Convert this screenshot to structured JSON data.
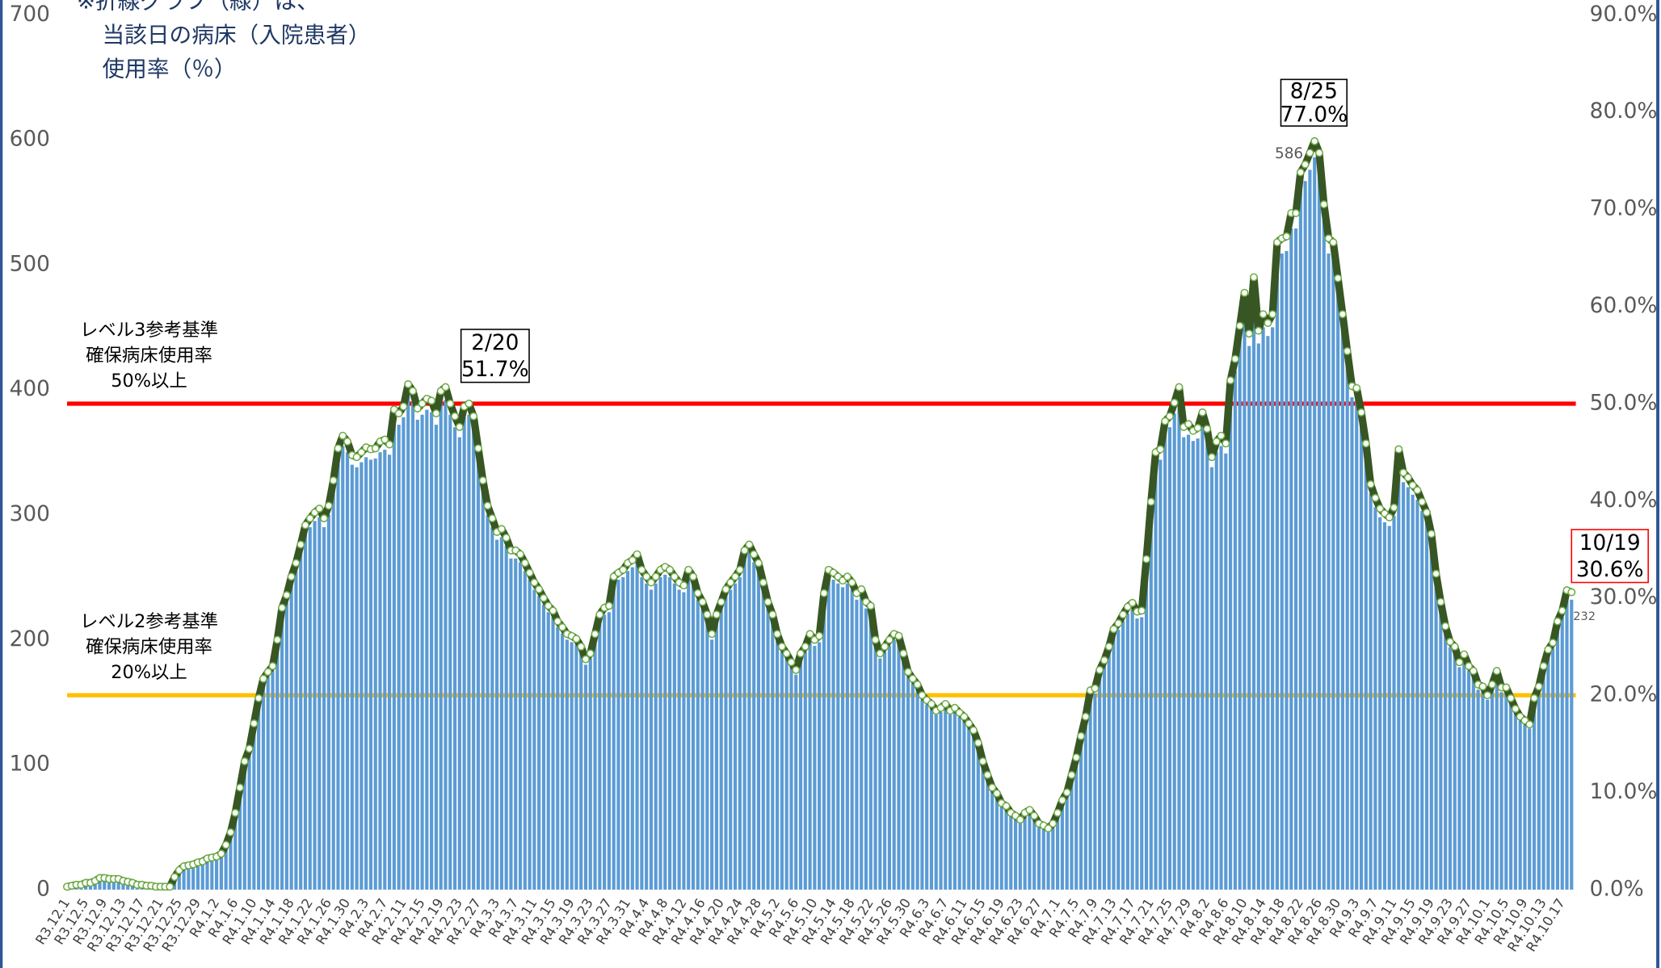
{
  "chart_data": {
    "type": "bar",
    "note": [
      "※折線グラフ（緑）は、",
      "当該日の病床（入院患者）",
      "使用率（％）"
    ],
    "categories": [
      "R3.12.1",
      null,
      null,
      null,
      "R3.12.5",
      null,
      null,
      null,
      "R3.12.9",
      null,
      null,
      null,
      "R3.12.13",
      null,
      null,
      null,
      "R3.12.17",
      null,
      null,
      null,
      "R3.12.21",
      null,
      null,
      null,
      "R3.12.25",
      null,
      null,
      null,
      "R3.12.29",
      null,
      null,
      null,
      "R4.1.2",
      null,
      null,
      null,
      "R4.1.6",
      null,
      null,
      null,
      "R4.1.10",
      null,
      null,
      null,
      "R4.1.14",
      null,
      null,
      null,
      "R4.1.18",
      null,
      null,
      null,
      "R4.1.22",
      null,
      null,
      null,
      "R4.1.26",
      null,
      null,
      null,
      "R4.1.30",
      null,
      null,
      null,
      "R4.2.3",
      null,
      null,
      null,
      "R4.2.7",
      null,
      null,
      null,
      "R4.2.11",
      null,
      null,
      null,
      "R4.2.15",
      null,
      null,
      null,
      "R4.2.19",
      null,
      null,
      null,
      "R4.2.23",
      null,
      null,
      null,
      "R4.2.27",
      null,
      null,
      null,
      "R4.3.3",
      null,
      null,
      null,
      "R4.3.7",
      null,
      null,
      null,
      "R4.3.11",
      null,
      null,
      null,
      "R4.3.15",
      null,
      null,
      null,
      "R4.3.19",
      null,
      null,
      null,
      "R4.3.23",
      null,
      null,
      null,
      "R4.3.27",
      null,
      null,
      null,
      "R4.3.31",
      null,
      null,
      null,
      "R4.4.4",
      null,
      null,
      null,
      "R4.4.8",
      null,
      null,
      null,
      "R4.4.12",
      null,
      null,
      null,
      "R4.4.16",
      null,
      null,
      null,
      "R4.4.20",
      null,
      null,
      null,
      "R4.4.24",
      null,
      null,
      null,
      "R4.4.28",
      null,
      null,
      null,
      "R4.5.2",
      null,
      null,
      null,
      "R4.5.6",
      null,
      null,
      null,
      "R4.5.10",
      null,
      null,
      null,
      "R4.5.14",
      null,
      null,
      null,
      "R4.5.18",
      null,
      null,
      null,
      "R4.5.22",
      null,
      null,
      null,
      "R4.5.26",
      null,
      null,
      null,
      "R4.5.30",
      null,
      null,
      null,
      "R4.6.3",
      null,
      null,
      null,
      "R4.6.7",
      null,
      null,
      null,
      "R4.6.11",
      null,
      null,
      null,
      "R4.6.15",
      null,
      null,
      null,
      "R4.6.19",
      null,
      null,
      null,
      "R4.6.23",
      null,
      null,
      null,
      "R4.6.27",
      null,
      null,
      null,
      "R4.7.1",
      null,
      null,
      null,
      "R4.7.5",
      null,
      null,
      null,
      "R4.7.9",
      null,
      null,
      null,
      "R4.7.13",
      null,
      null,
      null,
      "R4.7.17",
      null,
      null,
      null,
      "R4.7.21",
      null,
      null,
      null,
      "R4.7.25",
      null,
      null,
      null,
      "R4.7.29",
      null,
      null,
      null,
      "R4.8.2",
      null,
      null,
      null,
      "R4.8.6",
      null,
      null,
      null,
      "R4.8.10",
      null,
      null,
      null,
      "R4.8.14",
      null,
      null,
      null,
      "R4.8.18",
      null,
      null,
      null,
      "R4.8.22",
      null,
      null,
      null,
      "R4.8.26",
      null,
      null,
      null,
      "R4.8.30",
      null,
      null,
      null,
      "R4.9.3",
      null,
      null,
      null,
      "R4.9.7",
      null,
      null,
      null,
      "R4.9.11",
      null,
      null,
      null,
      "R4.9.15",
      null,
      null,
      null,
      "R4.9.19",
      null,
      null,
      null,
      "R4.9.23",
      null,
      null,
      null,
      "R4.9.27",
      null,
      null,
      null,
      "R4.10.1",
      null,
      null,
      null,
      "R4.10.5",
      null,
      null,
      null,
      "R4.10.9",
      null,
      null,
      null,
      "R4.10.13",
      null,
      null,
      null,
      "R4.10.17",
      null,
      null
    ],
    "series": [
      {
        "color": "#5b9bd5",
        "values": [
          2,
          3,
          4,
          4,
          5,
          5,
          7,
          9,
          9,
          8,
          8,
          8,
          7,
          6,
          5,
          4,
          4,
          3,
          3,
          2,
          2,
          2,
          2,
          10,
          15,
          18,
          19,
          20,
          21,
          22,
          24,
          25,
          26,
          28,
          35,
          45,
          60,
          80,
          100,
          110,
          130,
          150,
          165,
          170,
          175,
          195,
          220,
          230,
          245,
          255,
          270,
          285,
          290,
          295,
          298,
          290,
          300,
          320,
          345,
          355,
          350,
          340,
          338,
          342,
          346,
          344,
          345,
          350,
          352,
          348,
          375,
          372,
          378,
          395,
          390,
          376,
          380,
          384,
          382,
          372,
          390,
          392,
          380,
          370,
          362,
          378,
          380,
          370,
          345,
          320,
          300,
          290,
          280,
          282,
          275,
          265,
          265,
          262,
          255,
          248,
          240,
          235,
          228,
          222,
          218,
          210,
          205,
          200,
          198,
          196,
          190,
          180,
          185,
          200,
          215,
          220,
          222,
          245,
          248,
          250,
          255,
          258,
          262,
          250,
          245,
          240,
          245,
          250,
          252,
          250,
          245,
          240,
          238,
          250,
          245,
          232,
          225,
          215,
          200,
          215,
          225,
          235,
          240,
          245,
          250,
          265,
          270,
          262,
          255,
          240,
          225,
          215,
          200,
          190,
          185,
          178,
          172,
          185,
          190,
          200,
          195,
          198,
          232,
          250,
          248,
          245,
          242,
          245,
          240,
          232,
          235,
          225,
          222,
          195,
          185,
          190,
          195,
          200,
          198,
          185,
          170,
          165,
          160,
          152,
          148,
          145,
          140,
          142,
          145,
          140,
          142,
          138,
          135,
          130,
          125,
          115,
          100,
          90,
          80,
          75,
          68,
          65,
          60,
          58,
          55,
          60,
          62,
          58,
          52,
          50,
          48,
          52,
          60,
          70,
          76,
          90,
          103,
          120,
          135,
          156,
          157,
          172,
          179,
          190,
          204,
          208,
          215,
          221,
          224,
          217,
          218,
          258,
          303,
          342,
          344,
          366,
          370,
          381,
          393,
          362,
          364,
          359,
          361,
          373,
          360,
          338,
          350,
          355,
          349,
          398,
          415,
          441,
          467,
          435,
          479,
          437,
          450,
          443,
          450,
          506,
          509,
          511,
          529,
          529,
          561,
          567,
          576,
          586,
          576,
          536,
          509,
          506,
          478,
          450,
          421,
          394,
          392,
          373,
          349,
          317,
          306,
          298,
          294,
          291,
          299,
          344,
          326,
          322,
          316,
          312,
          303,
          295,
          278,
          247,
          225,
          206,
          194,
          190,
          178,
          184,
          175,
          171,
          160,
          159,
          152,
          160,
          171,
          158,
          158,
          150,
          141,
          135,
          132,
          129,
          150,
          159,
          175,
          188,
          193,
          210,
          218,
          234,
          232
        ]
      },
      {
        "type": "line",
        "axis": "y2",
        "color": "#375623",
        "marker_color": "#ffffff",
        "values": [
          0.3,
          0.4,
          0.5,
          0.5,
          0.7,
          0.7,
          0.9,
          1.2,
          1.2,
          1.1,
          1.1,
          1.1,
          0.9,
          0.8,
          0.7,
          0.5,
          0.5,
          0.4,
          0.4,
          0.3,
          0.3,
          0.3,
          0.3,
          1.3,
          2.0,
          2.4,
          2.5,
          2.6,
          2.8,
          2.9,
          3.2,
          3.3,
          3.4,
          3.7,
          4.6,
          5.9,
          7.9,
          10.5,
          13.2,
          14.5,
          17.1,
          19.7,
          21.7,
          22.4,
          23.0,
          25.7,
          29.0,
          30.3,
          32.2,
          33.6,
          35.5,
          37.5,
          38.2,
          38.8,
          39.2,
          38.2,
          39.5,
          42.1,
          45.4,
          46.7,
          46.1,
          44.7,
          44.5,
          45.0,
          45.5,
          45.3,
          45.4,
          46.1,
          46.3,
          45.8,
          49.4,
          49.0,
          49.7,
          52.0,
          51.3,
          49.5,
          50.0,
          50.5,
          50.3,
          49.0,
          51.3,
          51.7,
          50.0,
          48.7,
          47.6,
          49.7,
          50.0,
          48.7,
          45.4,
          42.1,
          39.5,
          38.2,
          36.8,
          37.1,
          36.2,
          34.9,
          34.9,
          34.5,
          33.6,
          32.6,
          31.6,
          30.9,
          30.0,
          29.2,
          28.7,
          27.6,
          27.0,
          26.3,
          26.1,
          25.8,
          25.0,
          23.7,
          24.3,
          26.3,
          28.3,
          29.0,
          29.2,
          32.2,
          32.6,
          32.9,
          33.6,
          33.9,
          34.5,
          32.9,
          32.2,
          31.6,
          32.2,
          32.9,
          33.2,
          32.9,
          32.2,
          31.6,
          31.3,
          32.9,
          32.2,
          30.5,
          29.6,
          28.3,
          26.3,
          28.3,
          29.6,
          30.9,
          31.6,
          32.2,
          32.9,
          34.9,
          35.5,
          34.5,
          33.6,
          31.6,
          29.6,
          28.3,
          26.3,
          25.0,
          24.3,
          23.4,
          22.6,
          24.3,
          25.0,
          26.3,
          25.7,
          26.1,
          30.5,
          32.9,
          32.6,
          32.2,
          31.8,
          32.2,
          31.6,
          30.5,
          30.9,
          29.6,
          29.2,
          25.7,
          24.3,
          25.0,
          25.7,
          26.3,
          26.1,
          24.3,
          22.4,
          21.7,
          21.1,
          20.0,
          19.5,
          19.1,
          18.4,
          18.7,
          19.1,
          18.4,
          18.7,
          18.2,
          17.8,
          17.1,
          16.4,
          15.1,
          13.2,
          11.8,
          10.5,
          9.9,
          8.9,
          8.6,
          7.9,
          7.6,
          7.2,
          7.9,
          8.2,
          7.6,
          6.8,
          6.6,
          6.3,
          6.8,
          7.9,
          9.2,
          10.0,
          11.8,
          13.6,
          15.8,
          17.8,
          20.5,
          20.7,
          22.6,
          23.6,
          25.0,
          26.8,
          27.4,
          28.3,
          29.1,
          29.5,
          28.6,
          28.7,
          34.0,
          39.9,
          45.0,
          45.3,
          48.2,
          48.7,
          50.1,
          51.7,
          47.6,
          47.9,
          47.2,
          47.5,
          49.1,
          47.4,
          44.5,
          46.1,
          46.7,
          45.9,
          52.4,
          54.6,
          58.0,
          61.4,
          57.2,
          63.0,
          57.5,
          59.2,
          58.3,
          59.2,
          66.6,
          67.0,
          67.2,
          69.6,
          69.6,
          73.8,
          74.6,
          75.8,
          77.0,
          75.8,
          70.5,
          67.0,
          66.6,
          62.9,
          59.2,
          55.4,
          51.8,
          51.6,
          49.1,
          45.9,
          41.7,
          40.3,
          39.2,
          38.7,
          38.3,
          39.3,
          45.3,
          42.9,
          42.4,
          41.6,
          41.1,
          39.9,
          38.8,
          36.6,
          32.5,
          29.6,
          27.1,
          25.5,
          25.0,
          23.4,
          24.2,
          23.0,
          22.5,
          21.1,
          20.9,
          20.0,
          21.1,
          22.5,
          20.8,
          20.8,
          19.7,
          18.6,
          17.8,
          17.4,
          17.0,
          19.7,
          20.9,
          23.0,
          24.7,
          25.4,
          27.6,
          28.7,
          30.8,
          30.6
        ]
      }
    ],
    "ylim": [
      0,
      700
    ],
    "yticks": [
      0,
      100,
      200,
      300,
      400,
      500,
      600,
      700
    ],
    "y2lim": [
      0,
      90
    ],
    "y2ticks": [
      {
        "value": 0,
        "label": "0.0%"
      },
      {
        "value": 10,
        "label": "10.0%"
      },
      {
        "value": 20,
        "label": "20.0%"
      },
      {
        "value": 30,
        "label": "30.0%"
      },
      {
        "value": 40,
        "label": "40.0%"
      },
      {
        "value": 50,
        "label": "50.0%"
      },
      {
        "value": 60,
        "label": "60.0%"
      },
      {
        "value": 70,
        "label": "70.0%"
      },
      {
        "value": 80,
        "label": "80.0%"
      },
      {
        "value": 90,
        "label": "90.0%"
      }
    ],
    "reference_lines": [
      {
        "value": 50,
        "axis": "y2",
        "color": "#ff0000",
        "label": [
          "レベル3参考基準",
          "確保病床使用率",
          "50%以上"
        ]
      },
      {
        "value": 20,
        "axis": "y2",
        "color": "#ffc000",
        "label": [
          "レベル2参考基準",
          "確保病床使用率",
          "20%以上"
        ]
      }
    ],
    "annotations": [
      {
        "lines": [
          "2/20",
          "51.7%"
        ],
        "color": "#000000"
      },
      {
        "lines": [
          "8/25",
          "77.0%"
        ],
        "color": "#000000"
      },
      {
        "lines": [
          "10/19",
          "30.6%"
        ],
        "color": "#ff0000"
      }
    ],
    "peak_label_color": "#ff0000",
    "grid": false
  }
}
